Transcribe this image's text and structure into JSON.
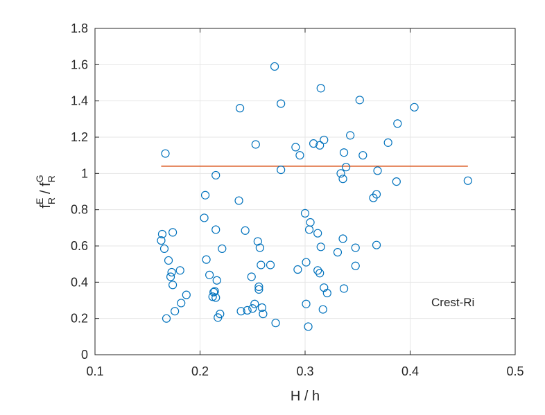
{
  "chart_data": {
    "type": "scatter",
    "title": "",
    "xlabel": "H / h",
    "ylabel": {
      "base1": "f",
      "sup1": "E",
      "sub1": "R",
      "sep": " / ",
      "base2": "f",
      "sup2": "G",
      "sub2": "R"
    },
    "xlim": [
      0.1,
      0.5
    ],
    "ylim": [
      0,
      1.8
    ],
    "x_ticks": [
      0.1,
      0.2,
      0.3,
      0.4,
      0.5
    ],
    "x_tick_labels": [
      "0.1",
      "0.2",
      "0.3",
      "0.4",
      "0.5"
    ],
    "y_ticks": [
      0,
      0.2,
      0.4,
      0.6,
      0.8,
      1,
      1.2,
      1.4,
      1.6,
      1.8
    ],
    "y_tick_labels": [
      "0",
      "0.2",
      "0.4",
      "0.6",
      "0.8",
      "1",
      "1.2",
      "1.4",
      "1.6",
      "1.8"
    ],
    "grid": true,
    "annotation": "Crest-Ri",
    "colors": {
      "points": "#0072BD",
      "line": "#D95319",
      "grid": "#e6e6e6",
      "axis": "#262626"
    },
    "series": [
      {
        "type": "scatter",
        "points": [
          [
            0.163,
            0.63
          ],
          [
            0.164,
            0.665
          ],
          [
            0.166,
            0.585
          ],
          [
            0.167,
            1.11
          ],
          [
            0.168,
            0.2
          ],
          [
            0.17,
            0.52
          ],
          [
            0.172,
            0.43
          ],
          [
            0.173,
            0.455
          ],
          [
            0.174,
            0.385
          ],
          [
            0.174,
            0.675
          ],
          [
            0.176,
            0.24
          ],
          [
            0.181,
            0.465
          ],
          [
            0.182,
            0.285
          ],
          [
            0.187,
            0.33
          ],
          [
            0.204,
            0.755
          ],
          [
            0.205,
            0.88
          ],
          [
            0.206,
            0.525
          ],
          [
            0.209,
            0.44
          ],
          [
            0.212,
            0.32
          ],
          [
            0.213,
            0.345
          ],
          [
            0.214,
            0.35
          ],
          [
            0.215,
            0.99
          ],
          [
            0.215,
            0.315
          ],
          [
            0.215,
            0.69
          ],
          [
            0.216,
            0.41
          ],
          [
            0.217,
            0.205
          ],
          [
            0.219,
            0.225
          ],
          [
            0.221,
            0.585
          ],
          [
            0.237,
            0.85
          ],
          [
            0.238,
            1.36
          ],
          [
            0.239,
            0.24
          ],
          [
            0.243,
            0.685
          ],
          [
            0.245,
            0.245
          ],
          [
            0.249,
            0.43
          ],
          [
            0.25,
            0.255
          ],
          [
            0.252,
            0.28
          ],
          [
            0.253,
            1.16
          ],
          [
            0.255,
            0.625
          ],
          [
            0.256,
            0.36
          ],
          [
            0.256,
            0.375
          ],
          [
            0.257,
            0.59
          ],
          [
            0.258,
            0.495
          ],
          [
            0.259,
            0.26
          ],
          [
            0.26,
            0.225
          ],
          [
            0.267,
            0.495
          ],
          [
            0.271,
            1.59
          ],
          [
            0.272,
            0.175
          ],
          [
            0.277,
            1.385
          ],
          [
            0.277,
            1.02
          ],
          [
            0.291,
            1.145
          ],
          [
            0.293,
            0.47
          ],
          [
            0.295,
            1.1
          ],
          [
            0.3,
            0.78
          ],
          [
            0.301,
            0.51
          ],
          [
            0.301,
            0.28
          ],
          [
            0.303,
            0.155
          ],
          [
            0.304,
            0.69
          ],
          [
            0.305,
            0.73
          ],
          [
            0.308,
            1.165
          ],
          [
            0.312,
            0.67
          ],
          [
            0.312,
            0.465
          ],
          [
            0.314,
            0.45
          ],
          [
            0.314,
            1.155
          ],
          [
            0.315,
            1.47
          ],
          [
            0.315,
            0.595
          ],
          [
            0.317,
            0.25
          ],
          [
            0.318,
            1.185
          ],
          [
            0.318,
            0.37
          ],
          [
            0.321,
            0.34
          ],
          [
            0.331,
            0.565
          ],
          [
            0.334,
            1.0
          ],
          [
            0.336,
            0.97
          ],
          [
            0.336,
            0.64
          ],
          [
            0.337,
            0.365
          ],
          [
            0.337,
            1.115
          ],
          [
            0.339,
            1.035
          ],
          [
            0.343,
            1.21
          ],
          [
            0.348,
            0.59
          ],
          [
            0.348,
            0.49
          ],
          [
            0.352,
            1.405
          ],
          [
            0.355,
            1.1
          ],
          [
            0.365,
            0.865
          ],
          [
            0.368,
            0.605
          ],
          [
            0.368,
            0.885
          ],
          [
            0.369,
            1.015
          ],
          [
            0.379,
            1.17
          ],
          [
            0.387,
            0.955
          ],
          [
            0.388,
            1.275
          ],
          [
            0.404,
            1.365
          ],
          [
            0.455,
            0.96
          ]
        ]
      },
      {
        "type": "line",
        "x": [
          0.163,
          0.455
        ],
        "y": [
          1.04,
          1.04
        ]
      }
    ]
  }
}
